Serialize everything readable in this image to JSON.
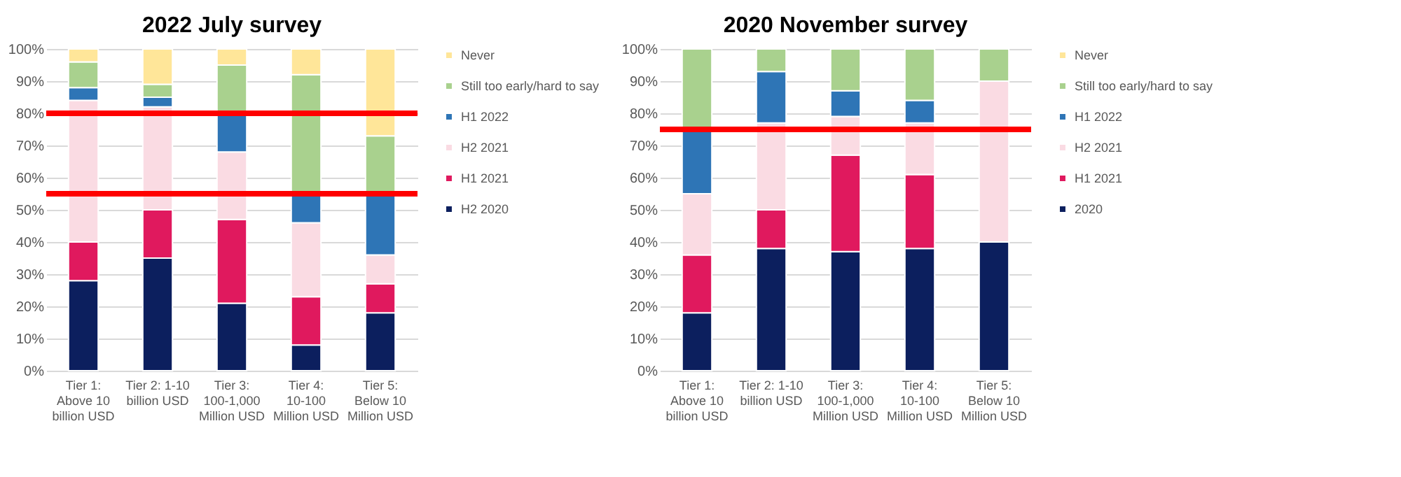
{
  "chart_data": [
    {
      "type": "bar",
      "title": "2022 July survey",
      "stacked": true,
      "grid": "y",
      "legend": "right",
      "categories": [
        "Tier 1: Above 10 billion USD",
        "Tier 2: 1-10 billion USD",
        "Tier 3: 100-1,000 Million USD",
        "Tier 4: 10-100 Million USD",
        "Tier 5: Below 10 Million USD"
      ],
      "ylim": [
        0,
        100
      ],
      "yticks": [
        {
          "value": 0,
          "label": "0%"
        },
        {
          "value": 10,
          "label": "10%"
        },
        {
          "value": 20,
          "label": "20%"
        },
        {
          "value": 30,
          "label": "30%"
        },
        {
          "value": 40,
          "label": "40%"
        },
        {
          "value": 50,
          "label": "50%"
        },
        {
          "value": 60,
          "label": "60%"
        },
        {
          "value": 70,
          "label": "70%"
        },
        {
          "value": 80,
          "label": "80%"
        },
        {
          "value": 90,
          "label": "90%"
        },
        {
          "value": 100,
          "label": "100%"
        }
      ],
      "series": [
        {
          "name": "H2 2020",
          "color": "#0c1f5e",
          "values": [
            28,
            35,
            21,
            8,
            18
          ]
        },
        {
          "name": "H1 2021",
          "color": "#e0195e",
          "values": [
            12,
            15,
            26,
            15,
            9
          ]
        },
        {
          "name": "H2 2021",
          "color": "#fadbe3",
          "values": [
            44,
            32,
            21,
            23,
            9
          ]
        },
        {
          "name": "H1 2022",
          "color": "#2e75b6",
          "values": [
            4,
            3,
            12,
            9,
            19
          ]
        },
        {
          "name": "Still too early/hard to say",
          "color": "#a9d18e",
          "values": [
            8,
            4,
            15,
            37,
            18
          ]
        },
        {
          "name": "Never",
          "color": "#ffe699",
          "values": [
            4,
            11,
            5,
            8,
            27
          ]
        }
      ],
      "ref_lines": [
        {
          "axis": "y",
          "value": 80,
          "color": "#ff0000"
        },
        {
          "axis": "y",
          "value": 55,
          "color": "#ff0000"
        }
      ]
    },
    {
      "type": "bar",
      "title": "2020 November survey",
      "stacked": true,
      "grid": "y",
      "legend": "right",
      "categories": [
        "Tier 1: Above 10 billion USD",
        "Tier 2: 1-10 billion USD",
        "Tier 3: 100-1,000 Million USD",
        "Tier 4: 10-100 Million USD",
        "Tier 5: Below 10 Million USD"
      ],
      "ylim": [
        0,
        100
      ],
      "yticks": [
        {
          "value": 0,
          "label": "0%"
        },
        {
          "value": 10,
          "label": "10%"
        },
        {
          "value": 20,
          "label": "20%"
        },
        {
          "value": 30,
          "label": "30%"
        },
        {
          "value": 40,
          "label": "40%"
        },
        {
          "value": 50,
          "label": "50%"
        },
        {
          "value": 60,
          "label": "60%"
        },
        {
          "value": 70,
          "label": "70%"
        },
        {
          "value": 80,
          "label": "80%"
        },
        {
          "value": 90,
          "label": "90%"
        },
        {
          "value": 100,
          "label": "100%"
        }
      ],
      "series": [
        {
          "name": "2020",
          "color": "#0c1f5e",
          "values": [
            18,
            38,
            37,
            38,
            40
          ]
        },
        {
          "name": "H1 2021",
          "color": "#e0195e",
          "values": [
            18,
            12,
            30,
            23,
            null
          ]
        },
        {
          "name": "H2 2021",
          "color": "#fadbe3",
          "values": [
            19,
            27,
            12,
            16,
            50
          ]
        },
        {
          "name": "H1 2022",
          "color": "#2e75b6",
          "values": [
            20,
            16,
            8,
            7,
            null
          ]
        },
        {
          "name": "Still too early/hard to say",
          "color": "#a9d18e",
          "values": [
            25,
            7,
            13,
            16,
            10
          ]
        },
        {
          "name": "Never",
          "color": "#ffe699",
          "values": [
            null,
            null,
            null,
            null,
            null
          ]
        }
      ],
      "ref_lines": [
        {
          "axis": "y",
          "value": 75,
          "color": "#ff0000"
        }
      ]
    }
  ]
}
